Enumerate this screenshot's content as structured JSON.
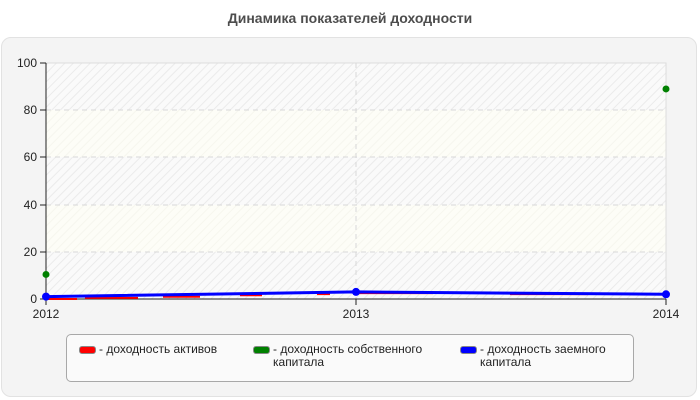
{
  "chart_data": {
    "type": "line",
    "title": "Динамика показателей доходности",
    "xlabel": "",
    "ylabel": "",
    "x": [
      "2012",
      "2013",
      "2014"
    ],
    "xlim": [
      2012,
      2014
    ],
    "ylim": [
      0,
      100
    ],
    "yticks": [
      0,
      20,
      40,
      60,
      80,
      100
    ],
    "grid": true,
    "legend_position": "bottom",
    "series": [
      {
        "name": "- доходность активов",
        "color": "#ff0000",
        "values": [
          0.4,
          2.9,
          2.5
        ],
        "steps": [
          [
            46,
            77,
            0.4
          ],
          [
            85,
            138,
            0.9
          ],
          [
            163,
            200,
            1.4
          ],
          [
            240,
            262,
            2.0
          ],
          [
            317,
            330,
            2.5
          ],
          [
            356,
            433,
            2.9
          ],
          [
            510,
            588,
            2.5
          ]
        ]
      },
      {
        "name": "- доходность собственного капитала",
        "color": "#008000",
        "values": [
          10.4,
          null,
          89
        ]
      },
      {
        "name": "- доходность заемного капитала",
        "color": "#0000ff",
        "values": [
          1.0,
          3.0,
          2.0
        ]
      }
    ]
  },
  "title": "Динамика показателей доходности",
  "axis": {
    "y_labels": [
      "100",
      "80",
      "60",
      "40",
      "20",
      "0"
    ],
    "x_labels": [
      "2012",
      "2013",
      "2014"
    ]
  },
  "legend": {
    "items": [
      {
        "label": "- доходность активов",
        "color": "#ff0000"
      },
      {
        "label": "- доходность собственного капитала",
        "color": "#008000"
      },
      {
        "label": "- доходность заемного капитала",
        "color": "#0000ff"
      }
    ]
  }
}
